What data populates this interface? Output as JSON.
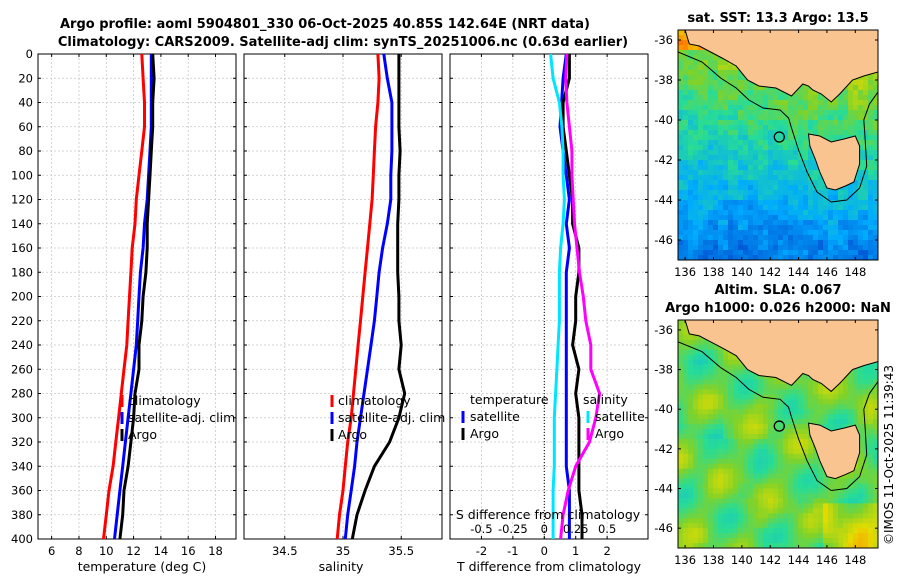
{
  "header": {
    "title_line1": "Argo profile: aoml 5904801_330 06-Oct-2025 40.85S 142.64E (NRT data)",
    "title_line2": "Climatology: CARS2009. Satellite-adj clim: synTS_20251006.nc (0.63d earlier)"
  },
  "credit": "©IMOS 11-Oct-2025 11:39:43",
  "chart_data": [
    {
      "type": "line",
      "id": "temperature",
      "xlabel": "temperature (deg C)",
      "ylabel": "depth",
      "xlim": [
        5,
        19.5
      ],
      "ylim": [
        400,
        0
      ],
      "xticks": [
        6,
        8,
        10,
        12,
        14,
        16,
        18
      ],
      "yticks": [
        0,
        20,
        40,
        60,
        80,
        100,
        120,
        140,
        160,
        180,
        200,
        220,
        240,
        260,
        280,
        300,
        320,
        340,
        360,
        380,
        400
      ],
      "legend": [
        "climatology",
        "satellite-adj. clim",
        "Argo"
      ],
      "series": [
        {
          "name": "climatology",
          "color": "#ff0000",
          "depth": [
            0,
            20,
            40,
            60,
            80,
            100,
            120,
            140,
            160,
            180,
            200,
            220,
            240,
            260,
            280,
            300,
            320,
            340,
            360,
            380,
            400
          ],
          "values": [
            12.6,
            12.7,
            12.8,
            12.8,
            12.6,
            12.4,
            12.2,
            12.1,
            11.9,
            11.8,
            11.7,
            11.6,
            11.5,
            11.3,
            11.1,
            10.9,
            10.7,
            10.5,
            10.2,
            10.0,
            9.8
          ]
        },
        {
          "name": "satellite-adj. clim",
          "color": "#0000ff",
          "depth": [
            0,
            20,
            40,
            60,
            80,
            100,
            120,
            140,
            160,
            180,
            200,
            220,
            240,
            260,
            280,
            300,
            320,
            340,
            360,
            380,
            400
          ],
          "values": [
            13.3,
            13.3,
            13.3,
            13.3,
            13.2,
            13.1,
            13.0,
            12.8,
            12.7,
            12.5,
            12.4,
            12.3,
            12.2,
            12.0,
            11.8,
            11.6,
            11.4,
            11.2,
            11.0,
            10.8,
            10.6
          ]
        },
        {
          "name": "Argo",
          "color": "#000000",
          "depth": [
            0,
            20,
            40,
            60,
            80,
            100,
            120,
            140,
            160,
            180,
            200,
            220,
            240,
            260,
            280,
            300,
            320,
            340,
            360,
            380,
            400
          ],
          "values": [
            13.4,
            13.5,
            13.4,
            13.4,
            13.3,
            13.2,
            13.1,
            13.0,
            13.0,
            12.9,
            12.7,
            12.6,
            12.4,
            12.4,
            12.1,
            12.0,
            11.8,
            11.6,
            11.3,
            11.2,
            11.0
          ]
        }
      ]
    },
    {
      "type": "line",
      "id": "salinity",
      "xlabel": "salinity",
      "ylabel": "depth",
      "xlim": [
        34.15,
        35.85
      ],
      "ylim": [
        400,
        0
      ],
      "xticks": [
        34.5,
        35,
        35.5
      ],
      "xticklabels": [
        "34.5",
        "35",
        "35.5"
      ],
      "legend": [
        "climatology",
        "satellite-adj. clim",
        "Argo"
      ],
      "series": [
        {
          "name": "climatology",
          "color": "#ff0000",
          "depth": [
            0,
            20,
            40,
            60,
            80,
            100,
            120,
            140,
            160,
            180,
            200,
            220,
            240,
            260,
            280,
            300,
            320,
            340,
            360,
            380,
            400
          ],
          "values": [
            35.3,
            35.31,
            35.3,
            35.28,
            35.27,
            35.26,
            35.25,
            35.23,
            35.21,
            35.19,
            35.17,
            35.15,
            35.13,
            35.11,
            35.09,
            35.07,
            35.04,
            35.02,
            35.0,
            34.97,
            34.95
          ]
        },
        {
          "name": "satellite-adj. clim",
          "color": "#0000ff",
          "depth": [
            0,
            20,
            40,
            60,
            80,
            100,
            120,
            140,
            160,
            180,
            200,
            220,
            240,
            260,
            280,
            300,
            320,
            340,
            360,
            380,
            400
          ],
          "values": [
            35.35,
            35.38,
            35.42,
            35.42,
            35.42,
            35.41,
            35.41,
            35.38,
            35.34,
            35.31,
            35.29,
            35.27,
            35.24,
            35.21,
            35.18,
            35.15,
            35.12,
            35.1,
            35.07,
            35.04,
            35.02
          ]
        },
        {
          "name": "Argo",
          "color": "#000000",
          "depth": [
            0,
            20,
            40,
            60,
            80,
            100,
            120,
            140,
            160,
            180,
            200,
            220,
            240,
            260,
            280,
            300,
            320,
            340,
            360,
            380,
            400
          ],
          "values": [
            35.48,
            35.48,
            35.48,
            35.48,
            35.49,
            35.48,
            35.48,
            35.47,
            35.47,
            35.47,
            35.48,
            35.48,
            35.5,
            35.48,
            35.53,
            35.48,
            35.4,
            35.27,
            35.19,
            35.12,
            35.08
          ]
        }
      ]
    },
    {
      "type": "line",
      "id": "difference",
      "xlabel": "T difference from climatology",
      "xlabel2": "S difference from climatology",
      "xlim": [
        -3,
        3.3
      ],
      "ylim": [
        400,
        0
      ],
      "xticks": [
        -2,
        -1,
        0,
        1,
        2
      ],
      "xticks2_labels": [
        "-0.5",
        "-0.25",
        "0",
        "0.25",
        "0.5"
      ],
      "legend_left_title": "temperature",
      "legend_right_title": "salinity",
      "legend_left": [
        "satellite",
        "Argo"
      ],
      "legend_right": [
        "satellite",
        "Argo"
      ],
      "series": [
        {
          "name": "temperature satellite",
          "color": "#0000ff",
          "depth": [
            0,
            20,
            40,
            60,
            80,
            100,
            120,
            140,
            160,
            180,
            200,
            220,
            240,
            260,
            280,
            300,
            320,
            340,
            360,
            380,
            400
          ],
          "values": [
            0.7,
            0.6,
            0.55,
            0.5,
            0.6,
            0.7,
            0.8,
            0.7,
            0.8,
            0.7,
            0.7,
            0.7,
            0.7,
            0.7,
            0.7,
            0.7,
            0.7,
            0.7,
            0.8,
            0.8,
            0.8
          ]
        },
        {
          "name": "temperature Argo",
          "color": "#000000",
          "depth": [
            0,
            20,
            40,
            60,
            80,
            100,
            120,
            140,
            160,
            180,
            200,
            220,
            240,
            260,
            280,
            300,
            320,
            340,
            360,
            380,
            400
          ],
          "values": [
            0.8,
            0.8,
            0.6,
            0.6,
            0.7,
            0.8,
            0.9,
            0.9,
            1.1,
            1.1,
            1.0,
            1.0,
            0.9,
            1.1,
            1.0,
            1.1,
            1.1,
            1.1,
            1.1,
            1.2,
            1.2
          ]
        },
        {
          "name": "salinity satellite",
          "color": "#00e5ff",
          "depth": [
            0,
            20,
            40,
            60,
            80,
            100,
            120,
            140,
            160,
            180,
            200,
            220,
            240,
            260,
            280,
            300,
            320,
            340,
            360,
            380,
            400
          ],
          "values": [
            0.05,
            0.07,
            0.12,
            0.14,
            0.15,
            0.15,
            0.16,
            0.15,
            0.13,
            0.12,
            0.12,
            0.12,
            0.11,
            0.1,
            0.09,
            0.08,
            0.08,
            0.08,
            0.07,
            0.07,
            0.07
          ]
        },
        {
          "name": "salinity Argo",
          "color": "#ff00ff",
          "depth": [
            0,
            20,
            40,
            60,
            80,
            100,
            120,
            140,
            160,
            180,
            200,
            220,
            240,
            260,
            280,
            300,
            320,
            340,
            360,
            380,
            400
          ],
          "values": [
            0.18,
            0.17,
            0.18,
            0.2,
            0.22,
            0.22,
            0.23,
            0.24,
            0.26,
            0.28,
            0.31,
            0.33,
            0.37,
            0.37,
            0.44,
            0.41,
            0.36,
            0.25,
            0.19,
            0.15,
            0.13
          ]
        }
      ]
    },
    {
      "type": "heatmap",
      "id": "sst-map",
      "title": "sat. SST: 13.3 Argo: 13.5",
      "xlim": [
        135.5,
        149.6
      ],
      "ylim": [
        -47,
        -35.5
      ],
      "xticks": [
        136,
        138,
        140,
        142,
        144,
        146,
        148
      ],
      "yticks": [
        -36,
        -38,
        -40,
        -42,
        -44,
        -46
      ],
      "argo_position": {
        "lon": 142.64,
        "lat": -40.85
      }
    },
    {
      "type": "heatmap",
      "id": "sla-map",
      "title": "Altim. SLA: 0.067",
      "subtitle": "Argo h1000: 0.026 h2000: NaN",
      "xlim": [
        135.5,
        149.6
      ],
      "ylim": [
        -47,
        -35.5
      ],
      "xticks": [
        136,
        138,
        140,
        142,
        144,
        146,
        148
      ],
      "yticks": [
        -36,
        -38,
        -40,
        -42,
        -44,
        -46
      ],
      "argo_position": {
        "lon": 142.64,
        "lat": -40.85
      }
    }
  ]
}
